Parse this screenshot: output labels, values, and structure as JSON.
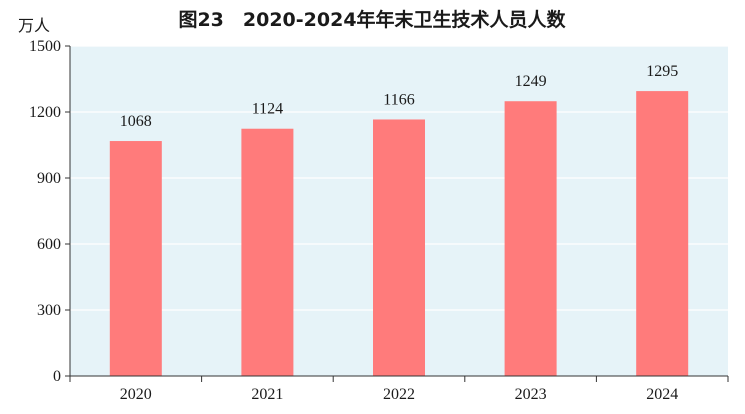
{
  "chart_data": {
    "type": "bar",
    "title": "图23　2020-2024年年末卫生技术人员人数",
    "unit": "万人",
    "categories": [
      "2020",
      "2021",
      "2022",
      "2023",
      "2024"
    ],
    "values": [
      1068,
      1124,
      1166,
      1249,
      1295
    ],
    "data_labels": [
      "1068",
      "1124",
      "1166",
      "1249",
      "1295"
    ],
    "y_ticks": [
      0,
      300,
      600,
      900,
      1200,
      1500
    ],
    "ylim": [
      0,
      1500
    ],
    "grid": true,
    "colors": {
      "bar": "#FF7B7B",
      "plot_background": "#E6F3F8",
      "grid": "#FFFFFF",
      "axis": "#333333"
    }
  }
}
